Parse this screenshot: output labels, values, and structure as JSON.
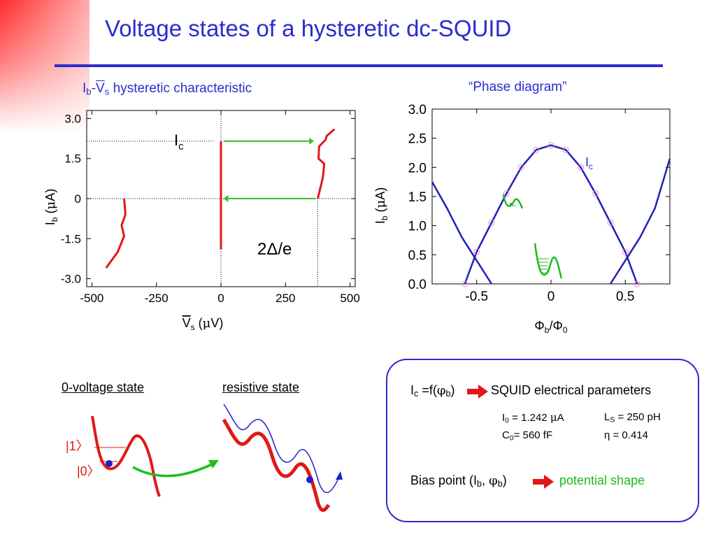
{
  "title": "Voltage states of a hysteretic dc-SQUID",
  "left_chart": {
    "title_parts": [
      "I",
      "b",
      "-",
      "V",
      "s",
      " hysteretic characteristic"
    ],
    "ylabel_parts": [
      "I",
      "b",
      " (",
      "μ",
      "A)"
    ],
    "xlabel_parts": [
      "V",
      "s",
      " (",
      "μ",
      "V)"
    ],
    "x_ticks": [
      "-500",
      "-250",
      "0",
      "250",
      "500"
    ],
    "y_ticks": [
      "3.0",
      "1.5",
      "0",
      "-1.5",
      "-3.0"
    ],
    "ic_label": [
      "I",
      "c"
    ],
    "gap_label": "2Δ/e"
  },
  "right_chart": {
    "title": "“Phase diagram”",
    "ylabel_parts": [
      "I",
      "b",
      " (",
      "μ",
      "A)"
    ],
    "xlabel_parts": [
      "Φ",
      "b",
      "/",
      "Φ",
      "0"
    ],
    "x_ticks": [
      "-0.5",
      "0",
      "0.5"
    ],
    "y_ticks": [
      "3.0",
      "2.5",
      "2.0",
      "1.5",
      "1.0",
      "0.5",
      "0.0"
    ],
    "ic_label": [
      "I",
      "c"
    ]
  },
  "chart_data": [
    {
      "type": "line",
      "title": "Ib-Vs hysteretic characteristic",
      "xlabel": "Vs (μV)",
      "ylabel": "Ib (μA)",
      "xlim": [
        -520,
        520
      ],
      "ylim": [
        -3.3,
        3.3
      ],
      "grid": false,
      "series": [
        {
          "x": [
            0,
            0,
            0,
            0
          ],
          "y": [
            -1.9,
            -0.5,
            1.0,
            2.15
          ]
        },
        {
          "x": [
            375,
            395,
            400,
            378,
            380,
            405,
            410,
            440
          ],
          "y": [
            0,
            0.8,
            1.3,
            1.5,
            1.95,
            2.2,
            2.35,
            2.6
          ]
        },
        {
          "x": [
            -375,
            -370,
            -385,
            -375,
            -400,
            -445
          ],
          "y": [
            0,
            -0.6,
            -1.0,
            -1.4,
            -2.0,
            -2.6
          ]
        }
      ]
    },
    {
      "type": "line",
      "title": "“Phase diagram”",
      "xlabel": "Φb/Φ0",
      "ylabel": "Ib (μA)",
      "xlim": [
        -0.8,
        0.8
      ],
      "ylim": [
        0,
        3.0
      ],
      "grid": false,
      "series": [
        {
          "x": [
            -0.58,
            -0.5,
            -0.4,
            -0.3,
            -0.2,
            -0.1,
            0.0,
            0.1,
            0.2,
            0.3,
            0.4,
            0.5,
            0.58
          ],
          "y": [
            0.0,
            0.55,
            1.05,
            1.55,
            2.0,
            2.3,
            2.38,
            2.3,
            2.0,
            1.55,
            1.05,
            0.55,
            0.0
          ]
        },
        {
          "x": [
            -0.8,
            -0.7,
            -0.6,
            -0.5,
            -0.4
          ],
          "y": [
            1.75,
            1.3,
            0.8,
            0.4,
            0.0
          ]
        },
        {
          "x": [
            0.4,
            0.5,
            0.6,
            0.7,
            0.8
          ],
          "y": [
            0.0,
            0.4,
            0.8,
            1.3,
            2.15
          ]
        }
      ]
    }
  ],
  "states": {
    "zero_voltage_label": "0-voltage state",
    "resistive_label": "resistive state",
    "level1": "|1〉",
    "level0": "|0〉"
  },
  "box": {
    "ic_eq_parts": [
      "I",
      "c",
      " =f(",
      "φ",
      "b",
      ")"
    ],
    "ic_result": "SQUID electrical parameters",
    "i0_parts": [
      "I",
      "0",
      " = 1.242 ",
      "μ",
      "A"
    ],
    "ls_parts": [
      "L",
      "S",
      " = 250 pH"
    ],
    "c0_parts": [
      "C",
      "0",
      "= 560 fF"
    ],
    "eta": "η = 0.414",
    "bias_parts": [
      "Bias point (I",
      "b",
      ", ",
      "φ",
      "b",
      ")"
    ],
    "bias_result": "potential shape"
  }
}
